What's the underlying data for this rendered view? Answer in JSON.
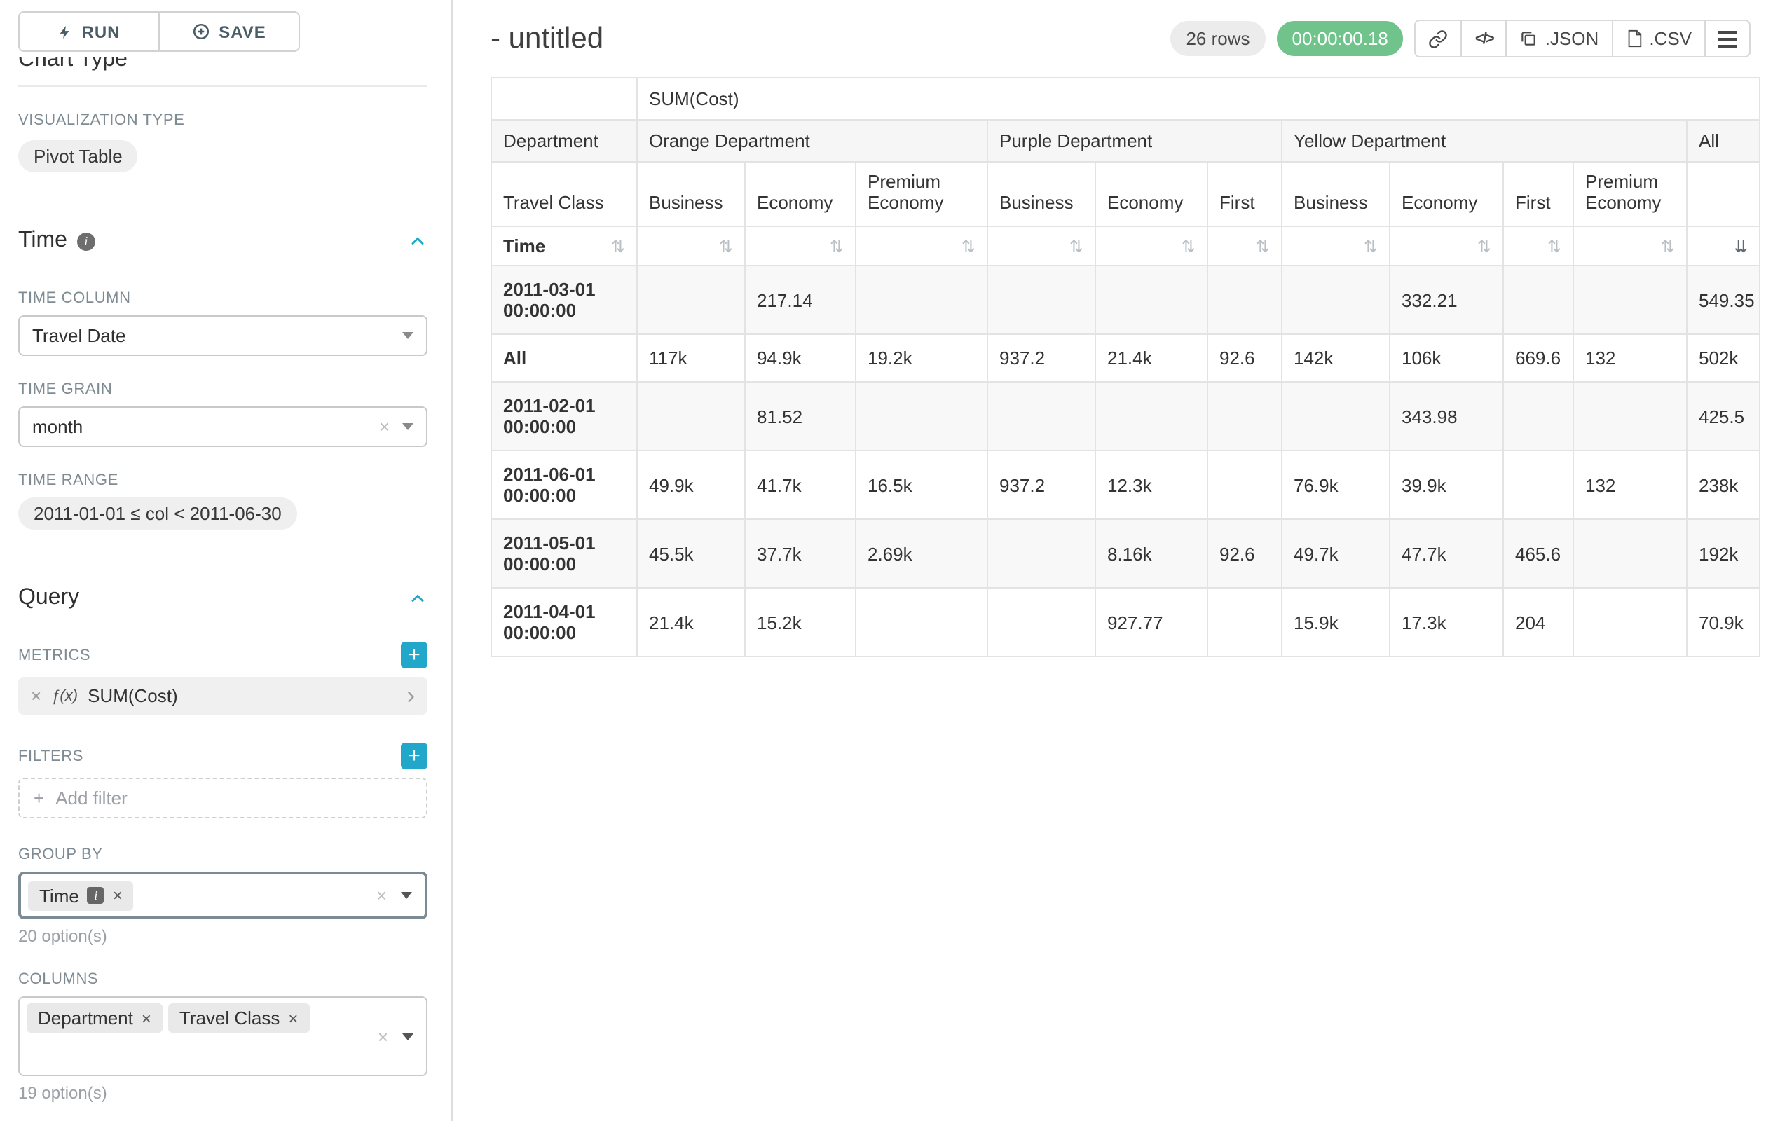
{
  "colors": {
    "accent": "#20a7c9",
    "timer_badge_bg": "#6fc38b",
    "focused_border": "#7c8a93"
  },
  "icons": {
    "run": "lightning-bolt",
    "save": "plus-circle",
    "collapse": "chevron-up",
    "sort": "⇅",
    "sort_desc": "⇊",
    "close": "×",
    "caret_right": "›",
    "code": "</>",
    "info": "i",
    "plus": "+",
    "fx": "ƒ(x)"
  },
  "sidebar": {
    "run_label": "RUN",
    "save_label": "SAVE",
    "chart_type_section": "Chart Type",
    "visualization_type_label": "VISUALIZATION TYPE",
    "visualization_type_value": "Pivot Table",
    "time_section": "Time",
    "time_column_label": "TIME COLUMN",
    "time_column_value": "Travel Date",
    "time_grain_label": "TIME GRAIN",
    "time_grain_value": "month",
    "time_range_label": "TIME RANGE",
    "time_range_value": "2011-01-01 ≤ col < 2011-06-30",
    "query_section": "Query",
    "metrics_label": "METRICS",
    "metric_value": "SUM(Cost)",
    "filters_label": "FILTERS",
    "add_filter_placeholder": "Add filter",
    "group_by_label": "GROUP BY",
    "group_by_values": [
      "Time"
    ],
    "group_by_options_count": "20 option(s)",
    "columns_label": "COLUMNS",
    "columns_values": [
      "Department",
      "Travel Class"
    ],
    "columns_options_count": "19 option(s)"
  },
  "header": {
    "title": "- untitled",
    "row_count_badge": "26 rows",
    "query_timer": "00:00:00.18",
    "json_button": ".JSON",
    "csv_button": ".CSV"
  },
  "table": {
    "metric_header": "SUM(Cost)",
    "department_header": "Department",
    "travel_class_header": "Travel Class",
    "time_header": "Time",
    "column_groups": [
      {
        "label": "Orange Department",
        "columns": [
          "Business",
          "Economy",
          "Premium Economy"
        ]
      },
      {
        "label": "Purple Department",
        "columns": [
          "Business",
          "Economy",
          "First"
        ]
      },
      {
        "label": "Yellow Department",
        "columns": [
          "Business",
          "Economy",
          "First",
          "Premium Economy"
        ]
      },
      {
        "label": "All",
        "columns": [
          ""
        ]
      }
    ],
    "rows": [
      {
        "label": "2011-03-01 00:00:00",
        "values": [
          "",
          "217.14",
          "",
          "",
          "",
          "",
          "",
          "332.21",
          "",
          "",
          "549.35"
        ]
      },
      {
        "label": "All",
        "values": [
          "117k",
          "94.9k",
          "19.2k",
          "937.2",
          "21.4k",
          "92.6",
          "142k",
          "106k",
          "669.6",
          "132",
          "502k"
        ]
      },
      {
        "label": "2011-02-01 00:00:00",
        "values": [
          "",
          "81.52",
          "",
          "",
          "",
          "",
          "",
          "343.98",
          "",
          "",
          "425.5"
        ]
      },
      {
        "label": "2011-06-01 00:00:00",
        "values": [
          "49.9k",
          "41.7k",
          "16.5k",
          "937.2",
          "12.3k",
          "",
          "76.9k",
          "39.9k",
          "",
          "132",
          "238k"
        ]
      },
      {
        "label": "2011-05-01 00:00:00",
        "values": [
          "45.5k",
          "37.7k",
          "2.69k",
          "",
          "8.16k",
          "92.6",
          "49.7k",
          "47.7k",
          "465.6",
          "",
          "192k"
        ]
      },
      {
        "label": "2011-04-01 00:00:00",
        "values": [
          "21.4k",
          "15.2k",
          "",
          "",
          "927.77",
          "",
          "15.9k",
          "17.3k",
          "204",
          "",
          "70.9k"
        ]
      }
    ]
  }
}
